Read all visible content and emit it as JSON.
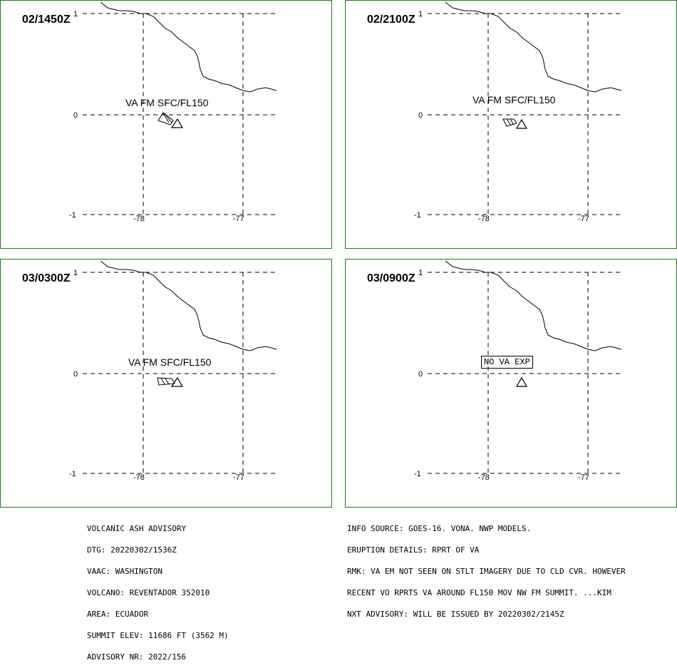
{
  "panels": [
    {
      "time": "02/1450Z",
      "label": "VA FM SFC/FL150",
      "no_va_label": ""
    },
    {
      "time": "02/2100Z",
      "label": "VA FM SFC/FL150",
      "no_va_label": ""
    },
    {
      "time": "03/0300Z",
      "label": "VA FM SFC/FL150",
      "no_va_label": ""
    },
    {
      "time": "03/0900Z",
      "label": "",
      "no_va_label": "NO VA EXP"
    }
  ],
  "axis": {
    "lat_labels": [
      "1",
      "0",
      "-1"
    ],
    "lon_labels": [
      "-78",
      "-77"
    ]
  },
  "advisory_left": [
    "VOLCANIC ASH ADVISORY",
    "DTG: 20220302/1536Z",
    "VAAC: WASHINGTON",
    "VOLCANO: REVENTADOR 352010",
    "AREA: ECUADOR",
    "SUMMIT ELEV: 11686 FT (3562 M)",
    "ADVISORY NR: 2022/156"
  ],
  "advisory_right": [
    "INFO SOURCE: GOES-16. VONA. NWP MODELS.",
    "ERUPTION DETAILS: RPRT OF VA",
    "RMK: VA EM NOT SEEN ON STLT IMAGERY DUE TO CLD CVR. HOWEVER",
    "RECENT VO RPRTS VA AROUND FL150 MOV NW FM SUMMIT. ...KIM",
    "NXT ADVISORY: WILL BE ISSUED BY 20220302/2145Z"
  ],
  "colors": {
    "panel_border": "#1a7f1a",
    "ink": "#000000"
  },
  "icons": {
    "volcano": "volcano-triangle-icon"
  }
}
